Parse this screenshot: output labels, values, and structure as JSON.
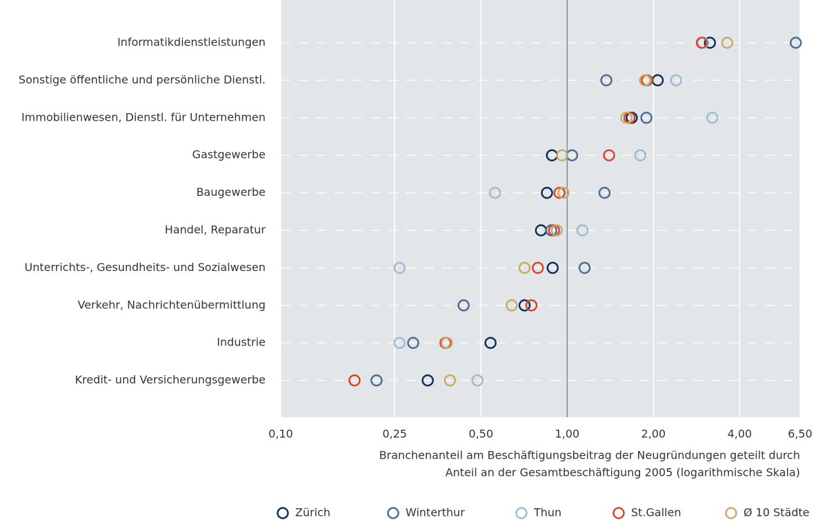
{
  "chart_data": {
    "type": "dotplot",
    "log_x": true,
    "xlim": [
      0.1,
      6.5
    ],
    "xticks": [
      {
        "value": 0.1,
        "label": "0,10"
      },
      {
        "value": 0.25,
        "label": "0,25"
      },
      {
        "value": 0.5,
        "label": "0,50"
      },
      {
        "value": 1,
        "label": "1,00"
      },
      {
        "value": 2,
        "label": "2,00"
      },
      {
        "value": 4,
        "label": "4,00"
      },
      {
        "value": 6.5,
        "label": "6,50"
      }
    ],
    "reference_line": 1,
    "xlabel": [
      "Branchenanteil am Beschäftigungsbeitrag der Neugründungen geteilt durch",
      "Anteil an der Gesamtbeschäftigung 2005 (logarithmische Skala)"
    ],
    "categories": [
      "Informatikdienstleistungen",
      "Sonstige öffentliche und persönliche Dienstl.",
      "Immobilienwesen, Dienstl. für Unternehmen",
      "Gastgewerbe",
      "Baugewerbe",
      "Handel, Reparatur",
      "Unterrichts-, Gesundheits- und Sozialwesen",
      "Verkehr, Nachrichtenübermittlung",
      "Industrie",
      "Kredit- und Versicherungsgewerbe"
    ],
    "series": [
      {
        "name": "Zürich",
        "color": "#0d2e5c",
        "values": [
          3.15,
          2.07,
          1.68,
          0.885,
          0.85,
          0.81,
          0.89,
          0.71,
          0.54,
          0.326
        ]
      },
      {
        "name": "Winterthur",
        "color": "#4a6f96",
        "values": [
          6.28,
          1.37,
          1.89,
          1.04,
          1.35,
          0.88,
          1.15,
          0.435,
          0.29,
          0.216
        ]
      },
      {
        "name": "Thun",
        "color": "#9dbcd0",
        "values": [
          2.98,
          2.4,
          3.21,
          1.8,
          0.56,
          1.13,
          0.26,
          null,
          0.26,
          0.486
        ]
      },
      {
        "name": "St.Gallen",
        "color": "#d9442a",
        "values": [
          2.95,
          1.9,
          1.65,
          1.4,
          0.94,
          0.9,
          0.79,
          0.75,
          0.376,
          0.181
        ]
      },
      {
        "name": "Ø 10 Städte",
        "color": "#c9a96a",
        "values": [
          3.62,
          1.87,
          1.61,
          0.96,
          0.97,
          0.92,
          0.71,
          0.64,
          0.38,
          0.39
        ]
      }
    ]
  }
}
